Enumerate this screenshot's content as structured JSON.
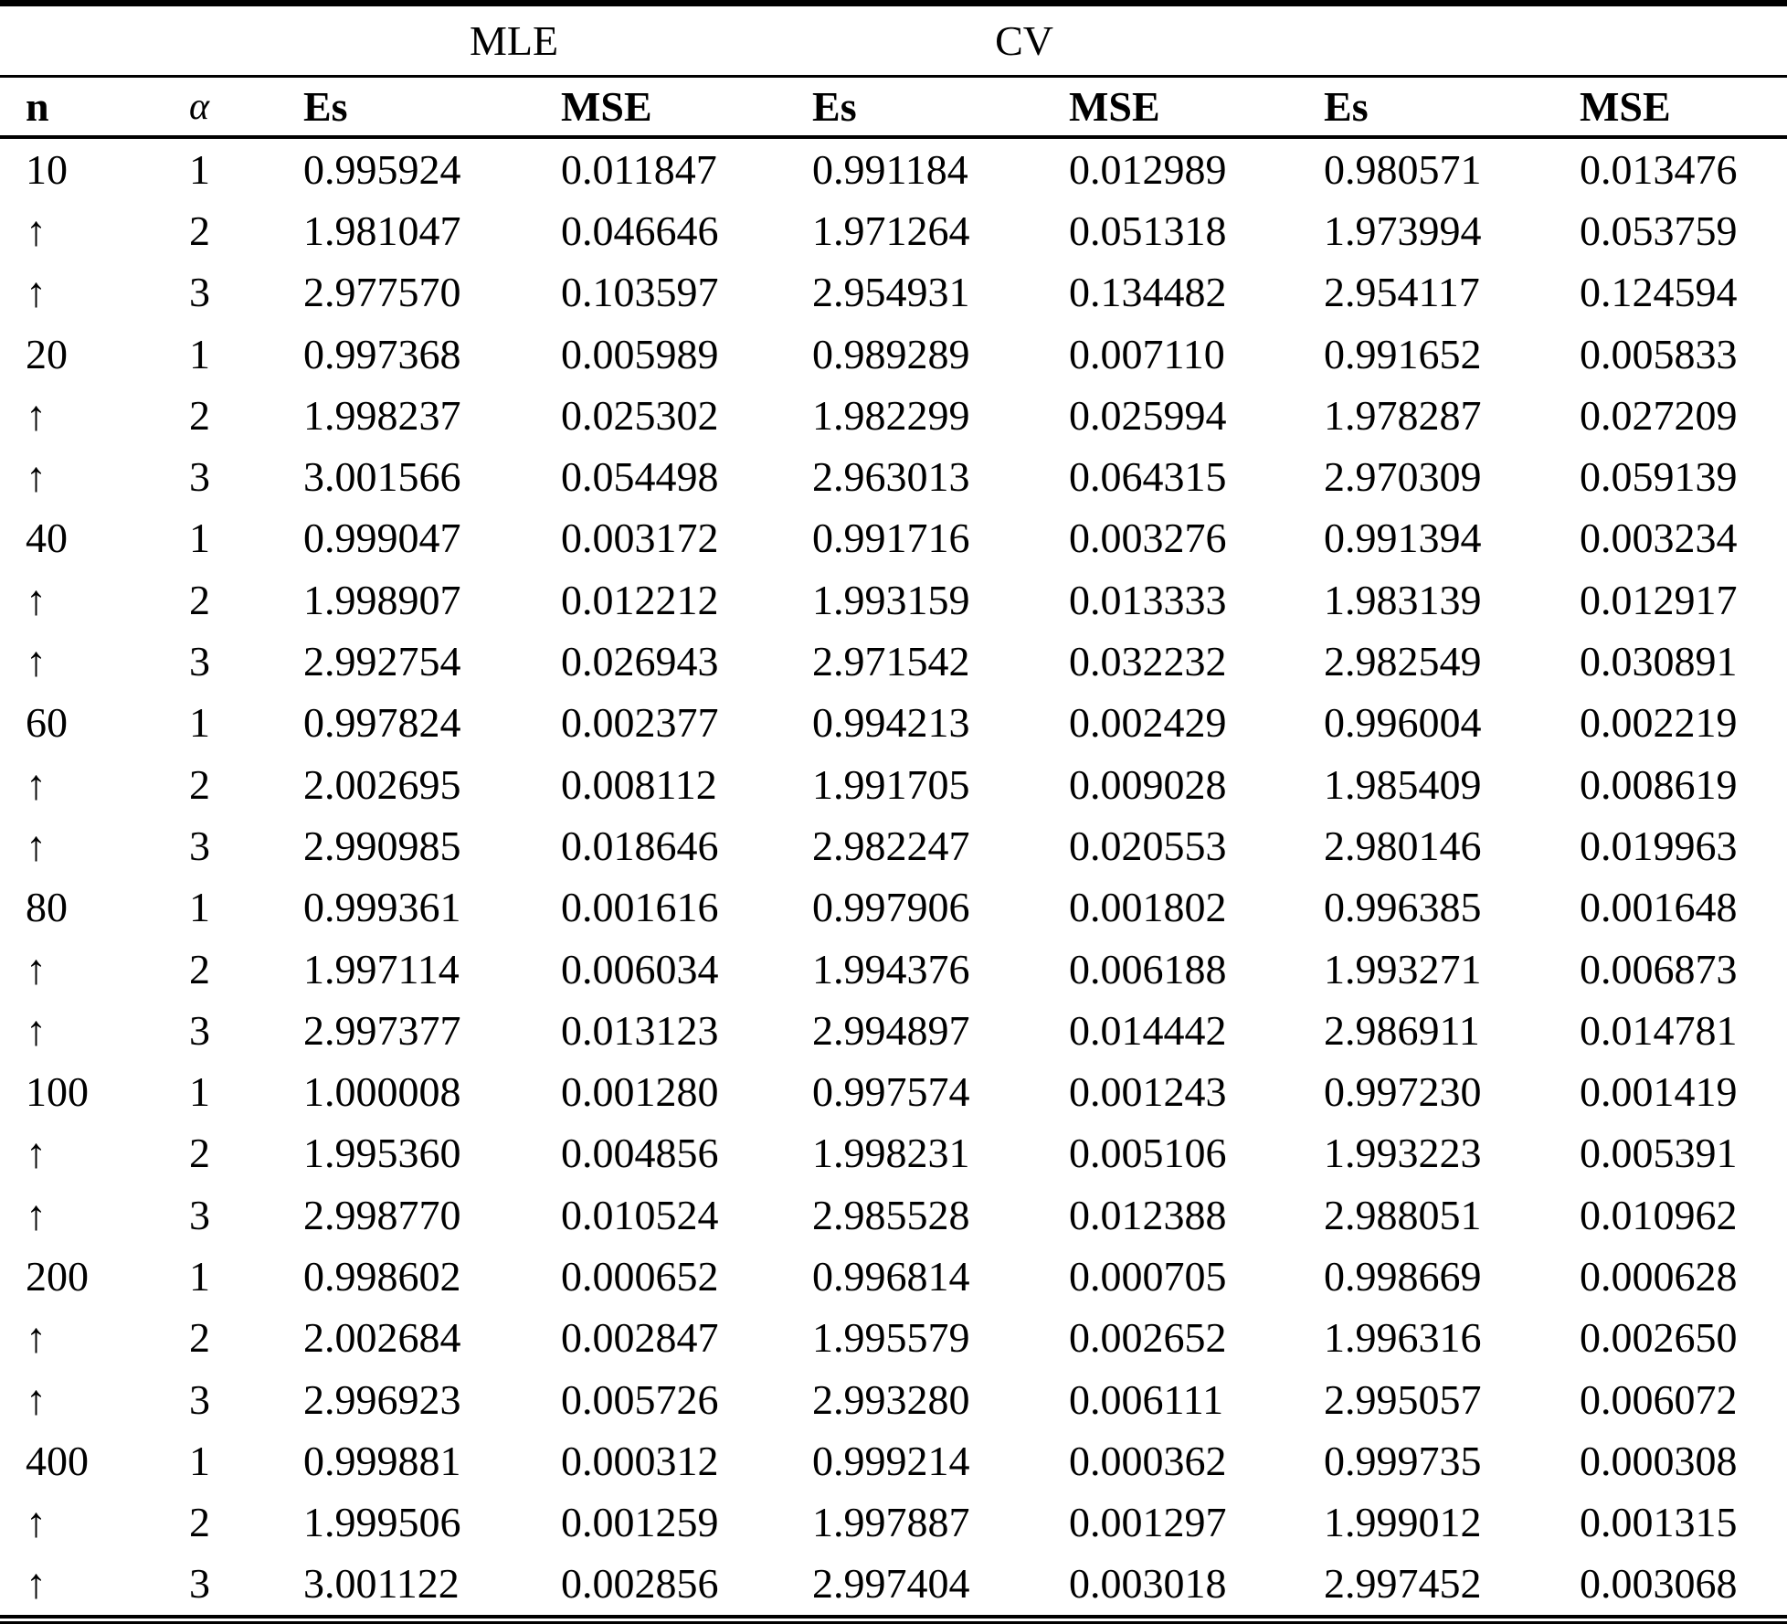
{
  "table": {
    "group_headers": [
      {
        "label": "",
        "span": 2
      },
      {
        "label": "MLE",
        "span": 2
      },
      {
        "label": "CV",
        "span": 2
      },
      {
        "label": "",
        "span": 2
      }
    ],
    "columns": [
      "n",
      "α",
      "Es",
      "MSE",
      "Es",
      "MSE",
      "Es",
      "MSE"
    ],
    "repeat_marker": "↑",
    "rows": [
      [
        "10",
        "1",
        "0.995924",
        "0.011847",
        "0.991184",
        "0.012989",
        "0.980571",
        "0.013476"
      ],
      [
        "↑",
        "2",
        "1.981047",
        "0.046646",
        "1.971264",
        "0.051318",
        "1.973994",
        "0.053759"
      ],
      [
        "↑",
        "3",
        "2.977570",
        "0.103597",
        "2.954931",
        "0.134482",
        "2.954117",
        "0.124594"
      ],
      [
        "20",
        "1",
        "0.997368",
        "0.005989",
        "0.989289",
        "0.007110",
        "0.991652",
        "0.005833"
      ],
      [
        "↑",
        "2",
        "1.998237",
        "0.025302",
        "1.982299",
        "0.025994",
        "1.978287",
        "0.027209"
      ],
      [
        "↑",
        "3",
        "3.001566",
        "0.054498",
        "2.963013",
        "0.064315",
        "2.970309",
        "0.059139"
      ],
      [
        "40",
        "1",
        "0.999047",
        "0.003172",
        "0.991716",
        "0.003276",
        "0.991394",
        "0.003234"
      ],
      [
        "↑",
        "2",
        "1.998907",
        "0.012212",
        "1.993159",
        "0.013333",
        "1.983139",
        "0.012917"
      ],
      [
        "↑",
        "3",
        "2.992754",
        "0.026943",
        "2.971542",
        "0.032232",
        "2.982549",
        "0.030891"
      ],
      [
        "60",
        "1",
        "0.997824",
        "0.002377",
        "0.994213",
        "0.002429",
        "0.996004",
        "0.002219"
      ],
      [
        "↑",
        "2",
        "2.002695",
        "0.008112",
        "1.991705",
        "0.009028",
        "1.985409",
        "0.008619"
      ],
      [
        "↑",
        "3",
        "2.990985",
        "0.018646",
        "2.982247",
        "0.020553",
        "2.980146",
        "0.019963"
      ],
      [
        "80",
        "1",
        "0.999361",
        "0.001616",
        "0.997906",
        "0.001802",
        "0.996385",
        "0.001648"
      ],
      [
        "↑",
        "2",
        "1.997114",
        "0.006034",
        "1.994376",
        "0.006188",
        "1.993271",
        "0.006873"
      ],
      [
        "↑",
        "3",
        "2.997377",
        "0.013123",
        "2.994897",
        "0.014442",
        "2.986911",
        "0.014781"
      ],
      [
        "100",
        "1",
        "1.000008",
        "0.001280",
        "0.997574",
        "0.001243",
        "0.997230",
        "0.001419"
      ],
      [
        "↑",
        "2",
        "1.995360",
        "0.004856",
        "1.998231",
        "0.005106",
        "1.993223",
        "0.005391"
      ],
      [
        "↑",
        "3",
        "2.998770",
        "0.010524",
        "2.985528",
        "0.012388",
        "2.988051",
        "0.010962"
      ],
      [
        "200",
        "1",
        "0.998602",
        "0.000652",
        "0.996814",
        "0.000705",
        "0.998669",
        "0.000628"
      ],
      [
        "↑",
        "2",
        "2.002684",
        "0.002847",
        "1.995579",
        "0.002652",
        "1.996316",
        "0.002650"
      ],
      [
        "↑",
        "3",
        "2.996923",
        "0.005726",
        "2.993280",
        "0.006111",
        "2.995057",
        "0.006072"
      ],
      [
        "400",
        "1",
        "0.999881",
        "0.000312",
        "0.999214",
        "0.000362",
        "0.999735",
        "0.000308"
      ],
      [
        "↑",
        "2",
        "1.999506",
        "0.001259",
        "1.997887",
        "0.001297",
        "1.999012",
        "0.001315"
      ],
      [
        "↑",
        "3",
        "3.001122",
        "0.002856",
        "2.997404",
        "0.003018",
        "2.997452",
        "0.003068"
      ]
    ]
  }
}
